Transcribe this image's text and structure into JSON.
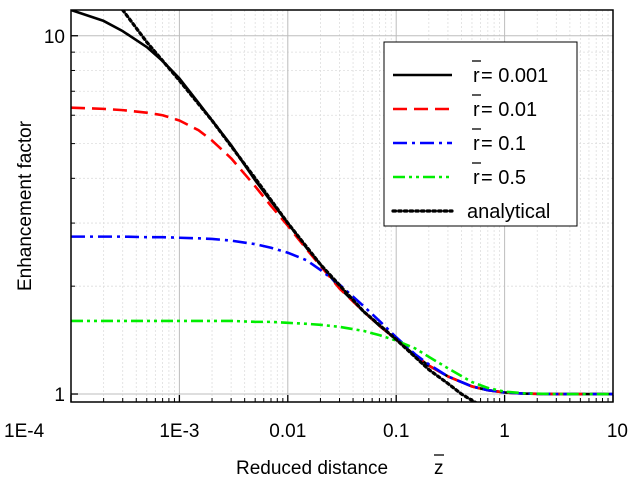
{
  "chart_data": {
    "type": "line",
    "xscale": "log",
    "yscale": "log",
    "xlim": [
      0.0001,
      10
    ],
    "ylim": [
      0.95,
      11.8
    ],
    "xlabel": "Reduced distance",
    "xlabel_symbol": "z",
    "ylabel": "Enhancement factor",
    "xticks": [
      {
        "value": 0.0001,
        "label": "1E-4"
      },
      {
        "value": 0.001,
        "label": "1E-3"
      },
      {
        "value": 0.01,
        "label": "0.01"
      },
      {
        "value": 0.1,
        "label": "0.1"
      },
      {
        "value": 1,
        "label": "1"
      },
      {
        "value": 10,
        "label": "10"
      }
    ],
    "yticks": [
      {
        "value": 1,
        "label": "1"
      },
      {
        "value": 10,
        "label": "10"
      }
    ],
    "grid": true,
    "legend_position": "top-right",
    "series": [
      {
        "name": "r = 0.001",
        "symbol": "r",
        "value_label": " = 0.001",
        "color": "#000000",
        "style": "solid",
        "x": [
          0.0001,
          0.0002,
          0.0003,
          0.0005,
          0.0007,
          0.001,
          0.0015,
          0.002,
          0.003,
          0.005,
          0.007,
          0.01,
          0.015,
          0.02,
          0.03,
          0.05,
          0.07,
          0.1,
          0.15,
          0.2,
          0.3,
          0.5,
          0.7,
          1,
          1.5,
          2,
          3,
          5,
          7,
          10
        ],
        "y": [
          11.8,
          11.0,
          10.3,
          9.3,
          8.5,
          7.6,
          6.5,
          5.8,
          4.95,
          3.95,
          3.45,
          3.0,
          2.55,
          2.3,
          1.98,
          1.7,
          1.55,
          1.42,
          1.28,
          1.2,
          1.12,
          1.05,
          1.025,
          1.01,
          1.003,
          1.001,
          1.0,
          1.0,
          1.0,
          1.0
        ]
      },
      {
        "name": "r = 0.01",
        "symbol": "r",
        "value_label": " = 0.01",
        "color": "#ff0000",
        "style": "dashed",
        "x": [
          0.0001,
          0.0002,
          0.0003,
          0.0005,
          0.0007,
          0.001,
          0.0015,
          0.002,
          0.003,
          0.005,
          0.007,
          0.01,
          0.015,
          0.02,
          0.03,
          0.05,
          0.07,
          0.1,
          0.15,
          0.2,
          0.3,
          0.5,
          0.7,
          1,
          1.5,
          2,
          3,
          5,
          7,
          10
        ],
        "y": [
          6.3,
          6.25,
          6.2,
          6.1,
          6.0,
          5.8,
          5.45,
          5.1,
          4.55,
          3.8,
          3.35,
          2.95,
          2.53,
          2.28,
          1.97,
          1.7,
          1.55,
          1.42,
          1.28,
          1.2,
          1.12,
          1.05,
          1.025,
          1.01,
          1.003,
          1.001,
          1.0,
          1.0,
          1.0,
          1.0
        ]
      },
      {
        "name": "r = 0.1",
        "symbol": "r",
        "value_label": " = 0.1",
        "color": "#0000ff",
        "style": "dashdot",
        "x": [
          0.0001,
          0.0002,
          0.0003,
          0.0005,
          0.0007,
          0.001,
          0.0015,
          0.002,
          0.003,
          0.005,
          0.007,
          0.01,
          0.015,
          0.02,
          0.03,
          0.05,
          0.07,
          0.1,
          0.15,
          0.2,
          0.3,
          0.5,
          0.7,
          1,
          1.5,
          2,
          3,
          5,
          7,
          10
        ],
        "y": [
          2.75,
          2.75,
          2.75,
          2.74,
          2.74,
          2.73,
          2.72,
          2.71,
          2.68,
          2.62,
          2.56,
          2.48,
          2.36,
          2.22,
          2.02,
          1.76,
          1.6,
          1.44,
          1.29,
          1.21,
          1.12,
          1.05,
          1.025,
          1.01,
          1.003,
          1.001,
          1.0,
          1.0,
          1.0,
          1.0
        ]
      },
      {
        "name": "r = 0.5",
        "symbol": "r",
        "value_label": " = 0.5",
        "color": "#00ee00",
        "style": "dashdotdot",
        "x": [
          0.0001,
          0.0002,
          0.0003,
          0.0005,
          0.0007,
          0.001,
          0.0015,
          0.002,
          0.003,
          0.005,
          0.007,
          0.01,
          0.015,
          0.02,
          0.03,
          0.05,
          0.07,
          0.1,
          0.15,
          0.2,
          0.3,
          0.5,
          0.7,
          1,
          1.5,
          2,
          3,
          5,
          7,
          10
        ],
        "y": [
          1.6,
          1.6,
          1.6,
          1.6,
          1.6,
          1.6,
          1.6,
          1.6,
          1.6,
          1.59,
          1.59,
          1.58,
          1.57,
          1.56,
          1.54,
          1.5,
          1.46,
          1.41,
          1.34,
          1.27,
          1.18,
          1.08,
          1.04,
          1.015,
          1.005,
          1.002,
          1.0,
          1.0,
          1.0,
          1.0
        ]
      },
      {
        "name": "analytical",
        "symbol": "",
        "value_label": "analytical",
        "color": "#000000",
        "style": "dotted",
        "x": [
          0.0003,
          0.0005,
          0.001,
          0.002,
          0.005,
          0.01,
          0.02,
          0.05,
          0.1,
          0.2,
          0.3,
          0.4,
          0.5,
          0.6
        ],
        "y": [
          11.8,
          9.6,
          7.5,
          5.8,
          4.0,
          3.0,
          2.3,
          1.7,
          1.42,
          1.17,
          1.07,
          1.0,
          0.96,
          0.93
        ]
      }
    ]
  }
}
